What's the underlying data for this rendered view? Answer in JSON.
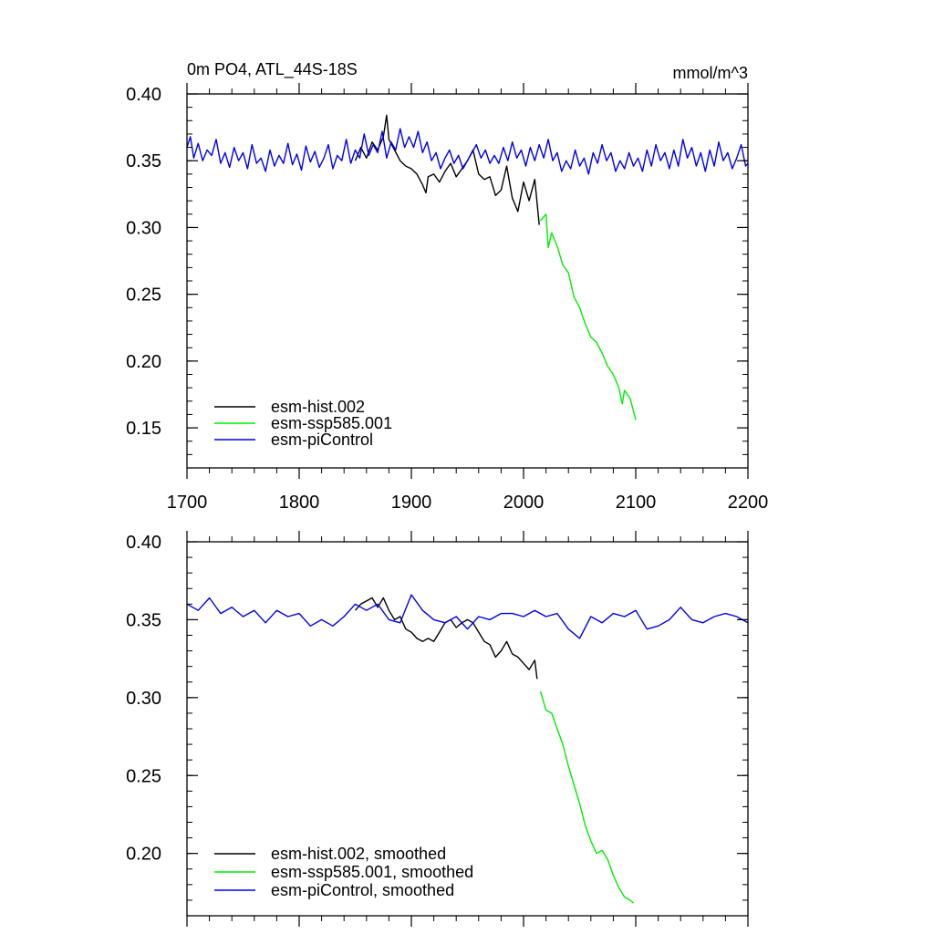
{
  "colors": {
    "hist": "#000000",
    "ssp": "#00ee00",
    "ctrl": "#0000ee"
  },
  "chart_data": [
    {
      "type": "line",
      "title": "0m PO4, ATL_44S-18S",
      "units": "mmol/m^3",
      "xlim": [
        1700,
        2200
      ],
      "ylim": [
        0.12,
        0.4
      ],
      "xticks": [
        "1700",
        "1800",
        "1900",
        "2000",
        "2100",
        "2200"
      ],
      "yticks": [
        "0.15",
        "0.20",
        "0.25",
        "0.30",
        "0.35",
        "0.40"
      ],
      "legend": "bottom-left",
      "series": [
        {
          "name": "esm-hist.002",
          "color": "hist",
          "x": [
            1850,
            1855,
            1860,
            1865,
            1870,
            1875,
            1878,
            1880,
            1885,
            1890,
            1895,
            1900,
            1905,
            1910,
            1913,
            1915,
            1920,
            1925,
            1930,
            1935,
            1940,
            1945,
            1950,
            1955,
            1960,
            1965,
            1970,
            1975,
            1980,
            1985,
            1990,
            1995,
            2000,
            2005,
            2010,
            2014
          ],
          "y": [
            0.35,
            0.36,
            0.352,
            0.364,
            0.358,
            0.368,
            0.384,
            0.366,
            0.358,
            0.35,
            0.346,
            0.344,
            0.34,
            0.332,
            0.326,
            0.338,
            0.34,
            0.334,
            0.342,
            0.348,
            0.338,
            0.344,
            0.35,
            0.358,
            0.34,
            0.336,
            0.338,
            0.324,
            0.328,
            0.346,
            0.322,
            0.312,
            0.334,
            0.32,
            0.336,
            0.302
          ]
        },
        {
          "name": "esm-ssp585.001",
          "color": "ssp",
          "x": [
            2015,
            2020,
            2022,
            2025,
            2030,
            2035,
            2040,
            2045,
            2050,
            2055,
            2060,
            2065,
            2070,
            2075,
            2080,
            2085,
            2088,
            2090,
            2095,
            2100
          ],
          "y": [
            0.305,
            0.31,
            0.285,
            0.296,
            0.286,
            0.272,
            0.266,
            0.248,
            0.24,
            0.228,
            0.218,
            0.214,
            0.206,
            0.196,
            0.19,
            0.18,
            0.168,
            0.178,
            0.172,
            0.156
          ]
        },
        {
          "name": "esm-piControl",
          "color": "ctrl",
          "x": [
            1700,
            1703,
            1706,
            1710,
            1714,
            1718,
            1722,
            1726,
            1730,
            1734,
            1738,
            1742,
            1746,
            1750,
            1754,
            1758,
            1762,
            1766,
            1770,
            1774,
            1778,
            1782,
            1786,
            1790,
            1794,
            1798,
            1802,
            1806,
            1810,
            1814,
            1818,
            1822,
            1826,
            1830,
            1834,
            1838,
            1842,
            1846,
            1850,
            1854,
            1858,
            1862,
            1866,
            1870,
            1874,
            1878,
            1882,
            1886,
            1890,
            1894,
            1898,
            1902,
            1906,
            1910,
            1914,
            1918,
            1922,
            1926,
            1930,
            1934,
            1938,
            1942,
            1946,
            1950,
            1954,
            1958,
            1962,
            1966,
            1970,
            1974,
            1978,
            1982,
            1986,
            1990,
            1994,
            1998,
            2002,
            2006,
            2010,
            2014,
            2018,
            2022,
            2026,
            2030,
            2034,
            2038,
            2042,
            2046,
            2050,
            2054,
            2058,
            2062,
            2066,
            2070,
            2074,
            2078,
            2082,
            2086,
            2090,
            2094,
            2098,
            2102,
            2106,
            2110,
            2114,
            2118,
            2122,
            2126,
            2130,
            2134,
            2138,
            2142,
            2146,
            2150,
            2154,
            2158,
            2162,
            2166,
            2170,
            2174,
            2178,
            2182,
            2186,
            2190,
            2194,
            2198,
            2200
          ],
          "y": [
            0.36,
            0.368,
            0.352,
            0.363,
            0.35,
            0.358,
            0.354,
            0.366,
            0.348,
            0.356,
            0.345,
            0.36,
            0.35,
            0.356,
            0.344,
            0.362,
            0.348,
            0.352,
            0.342,
            0.358,
            0.346,
            0.354,
            0.348,
            0.363,
            0.347,
            0.355,
            0.343,
            0.361,
            0.349,
            0.357,
            0.345,
            0.352,
            0.362,
            0.344,
            0.354,
            0.35,
            0.366,
            0.348,
            0.358,
            0.352,
            0.37,
            0.354,
            0.362,
            0.356,
            0.372,
            0.352,
            0.364,
            0.358,
            0.374,
            0.36,
            0.368,
            0.36,
            0.372,
            0.356,
            0.364,
            0.35,
            0.356,
            0.344,
            0.352,
            0.358,
            0.348,
            0.354,
            0.344,
            0.35,
            0.356,
            0.362,
            0.352,
            0.358,
            0.348,
            0.354,
            0.348,
            0.36,
            0.35,
            0.364,
            0.352,
            0.358,
            0.346,
            0.36,
            0.35,
            0.362,
            0.352,
            0.366,
            0.35,
            0.356,
            0.342,
            0.35,
            0.344,
            0.358,
            0.346,
            0.352,
            0.34,
            0.356,
            0.348,
            0.362,
            0.35,
            0.356,
            0.342,
            0.35,
            0.344,
            0.356,
            0.346,
            0.352,
            0.342,
            0.358,
            0.346,
            0.362,
            0.35,
            0.356,
            0.344,
            0.358,
            0.346,
            0.366,
            0.352,
            0.36,
            0.346,
            0.356,
            0.342,
            0.358,
            0.346,
            0.364,
            0.35,
            0.356,
            0.344,
            0.352,
            0.362,
            0.346,
            0.348
          ]
        }
      ]
    },
    {
      "type": "line",
      "xlim": [
        1700,
        2200
      ],
      "ylim": [
        0.16,
        0.4
      ],
      "yticks": [
        "0.20",
        "0.25",
        "0.30",
        "0.35",
        "0.40"
      ],
      "legend": "bottom-left",
      "series": [
        {
          "name": "esm-hist.002, smoothed",
          "color": "hist",
          "x": [
            1850,
            1855,
            1860,
            1865,
            1870,
            1875,
            1880,
            1885,
            1890,
            1895,
            1900,
            1905,
            1910,
            1915,
            1920,
            1925,
            1930,
            1935,
            1940,
            1945,
            1950,
            1955,
            1960,
            1965,
            1970,
            1975,
            1980,
            1985,
            1990,
            1995,
            2000,
            2005,
            2010,
            2012
          ],
          "y": [
            0.356,
            0.36,
            0.362,
            0.364,
            0.358,
            0.364,
            0.356,
            0.35,
            0.352,
            0.344,
            0.342,
            0.338,
            0.336,
            0.338,
            0.336,
            0.342,
            0.348,
            0.35,
            0.345,
            0.348,
            0.35,
            0.348,
            0.342,
            0.336,
            0.334,
            0.326,
            0.33,
            0.336,
            0.328,
            0.326,
            0.322,
            0.318,
            0.324,
            0.312
          ]
        },
        {
          "name": "esm-ssp585.001, smoothed",
          "color": "ssp",
          "x": [
            2015,
            2020,
            2025,
            2030,
            2035,
            2040,
            2045,
            2050,
            2055,
            2060,
            2065,
            2070,
            2075,
            2080,
            2085,
            2090,
            2095,
            2098
          ],
          "y": [
            0.304,
            0.292,
            0.29,
            0.28,
            0.27,
            0.256,
            0.244,
            0.232,
            0.218,
            0.208,
            0.2,
            0.202,
            0.196,
            0.186,
            0.178,
            0.172,
            0.17,
            0.168
          ]
        },
        {
          "name": "esm-piControl, smoothed",
          "color": "ctrl",
          "x": [
            1700,
            1710,
            1720,
            1730,
            1740,
            1750,
            1760,
            1770,
            1780,
            1790,
            1800,
            1810,
            1820,
            1830,
            1840,
            1850,
            1860,
            1870,
            1880,
            1890,
            1900,
            1910,
            1920,
            1930,
            1940,
            1950,
            1960,
            1970,
            1980,
            1990,
            2000,
            2010,
            2020,
            2030,
            2040,
            2050,
            2060,
            2070,
            2080,
            2090,
            2100,
            2110,
            2120,
            2130,
            2140,
            2150,
            2160,
            2170,
            2180,
            2190,
            2200
          ],
          "y": [
            0.36,
            0.356,
            0.364,
            0.354,
            0.358,
            0.352,
            0.356,
            0.348,
            0.356,
            0.352,
            0.354,
            0.346,
            0.35,
            0.346,
            0.352,
            0.36,
            0.356,
            0.36,
            0.35,
            0.348,
            0.366,
            0.356,
            0.35,
            0.348,
            0.352,
            0.344,
            0.352,
            0.35,
            0.354,
            0.354,
            0.352,
            0.356,
            0.352,
            0.354,
            0.344,
            0.338,
            0.352,
            0.348,
            0.354,
            0.352,
            0.356,
            0.344,
            0.346,
            0.35,
            0.358,
            0.35,
            0.348,
            0.352,
            0.354,
            0.352,
            0.348
          ]
        }
      ]
    }
  ]
}
